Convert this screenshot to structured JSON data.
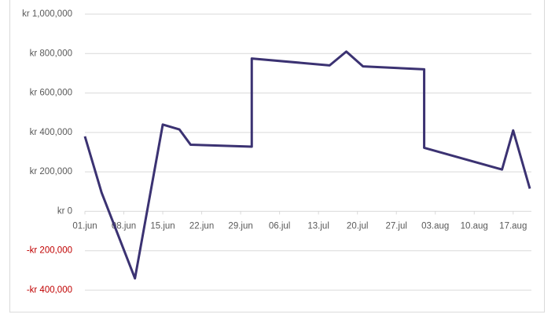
{
  "chart_data": {
    "type": "line",
    "x": [
      "06-01",
      "06-04",
      "06-10",
      "06-15",
      "06-18",
      "06-20",
      "07-01",
      "07-01",
      "07-15",
      "07-18",
      "07-21",
      "08-01",
      "08-01",
      "08-15",
      "08-17",
      "08-20"
    ],
    "series": [
      {
        "color": "#3b3272",
        "values": [
          380000,
          95000,
          -340000,
          440000,
          415000,
          338000,
          328000,
          775000,
          740000,
          810000,
          735000,
          720000,
          322000,
          212000,
          410000,
          115000
        ]
      }
    ],
    "xlim": [
      "06-01",
      "08-20"
    ],
    "xticks": [
      {
        "value": "06-01",
        "label": "01.jun"
      },
      {
        "value": "06-08",
        "label": "08.jun"
      },
      {
        "value": "06-15",
        "label": "15.jun"
      },
      {
        "value": "06-22",
        "label": "22.jun"
      },
      {
        "value": "06-29",
        "label": "29.jun"
      },
      {
        "value": "07-06",
        "label": "06.jul"
      },
      {
        "value": "07-13",
        "label": "13.jul"
      },
      {
        "value": "07-20",
        "label": "20.jul"
      },
      {
        "value": "07-27",
        "label": "27.jul"
      },
      {
        "value": "08-03",
        "label": "03.aug"
      },
      {
        "value": "08-10",
        "label": "10.aug"
      },
      {
        "value": "08-17",
        "label": "17.aug"
      }
    ],
    "ylim": [
      -400000,
      1000000
    ],
    "yticks": [
      {
        "value": -400000,
        "label": "-kr 400,000"
      },
      {
        "value": -200000,
        "label": "-kr 200,000"
      },
      {
        "value": 0,
        "label": "kr 0"
      },
      {
        "value": 200000,
        "label": "kr 200,000"
      },
      {
        "value": 400000,
        "label": "kr 400,000"
      },
      {
        "value": 600000,
        "label": "kr 600,000"
      },
      {
        "value": 800000,
        "label": "kr 800,000"
      },
      {
        "value": 1000000,
        "label": "kr 1,000,000"
      }
    ],
    "negative_color": "#c00000",
    "grid": true
  }
}
